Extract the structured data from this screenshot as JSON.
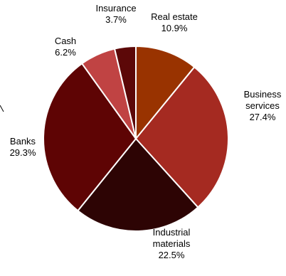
{
  "chart_data": {
    "type": "pie",
    "title": "",
    "start_angle_deg": 0,
    "direction": "clockwise",
    "slices": [
      {
        "label_lines": [
          "Real estate"
        ],
        "value": 10.9,
        "value_label": "10.9%",
        "color": "#993300"
      },
      {
        "label_lines": [
          "Business",
          "services"
        ],
        "value": 27.4,
        "value_label": "27.4%",
        "color": "#A52A21"
      },
      {
        "label_lines": [
          "Industrial",
          "materials"
        ],
        "value": 22.5,
        "value_label": "22.5%",
        "color": "#2D0404"
      },
      {
        "label_lines": [
          "Banks"
        ],
        "value": 29.3,
        "value_label": "29.3%",
        "color": "#5E0404"
      },
      {
        "label_lines": [
          "Cash"
        ],
        "value": 6.2,
        "value_label": "6.2%",
        "color": "#C04343"
      },
      {
        "label_lines": [
          "Insurance"
        ],
        "value": 3.7,
        "value_label": "3.7%",
        "color": "#5C0808"
      }
    ],
    "legend": "none"
  }
}
